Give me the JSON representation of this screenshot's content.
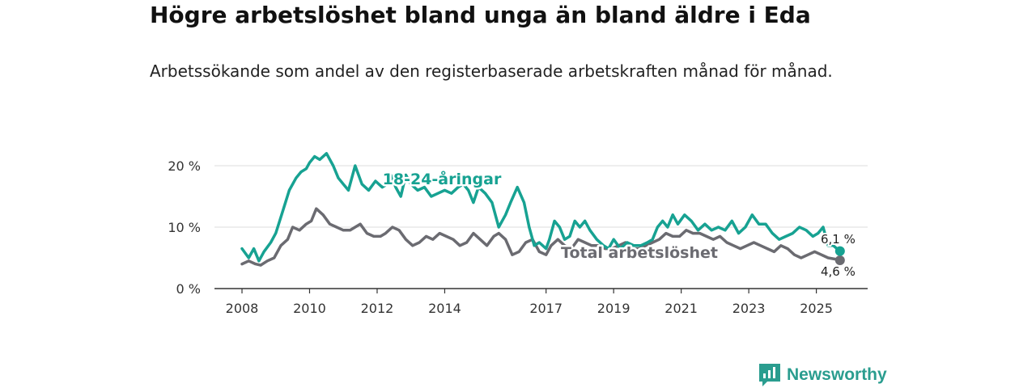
{
  "title": "Högre arbetslöshet bland unga än bland äldre i Eda",
  "subtitle": "Arbetssökande som andel av den registerbaserade arbetskraften månad för månad.",
  "brand": "Newsworthy",
  "colors": {
    "youth": "#17a292",
    "total": "#6b6b71",
    "grid": "#dddddd",
    "brand": "#2a9d8f"
  },
  "chart_data": {
    "type": "line",
    "title": "Högre arbetslöshet bland unga än bland äldre i Eda",
    "xlabel": "",
    "ylabel": "",
    "xlim": [
      2008,
      2025.8
    ],
    "ylim": [
      0,
      20
    ],
    "y_ticks": [
      0,
      10,
      20
    ],
    "y_tick_labels": [
      "0 %",
      "10 %",
      "20 %"
    ],
    "x_ticks": [
      2008,
      2010,
      2012,
      2014,
      2017,
      2019,
      2021,
      2023,
      2025
    ],
    "x_tick_labels": [
      "2008",
      "2010",
      "2012",
      "2014",
      "2017",
      "2019",
      "2021",
      "2023",
      "2025"
    ],
    "grid": true,
    "series": [
      {
        "name": "18-24-åringar",
        "label": "18-24-åringar",
        "color": "#17a292",
        "end_label": "6,1 %",
        "x": [
          2008.0,
          2008.2,
          2008.35,
          2008.5,
          2008.65,
          2008.85,
          2009.0,
          2009.2,
          2009.4,
          2009.6,
          2009.75,
          2009.9,
          2010.0,
          2010.15,
          2010.3,
          2010.5,
          2010.7,
          2010.85,
          2011.0,
          2011.15,
          2011.35,
          2011.55,
          2011.75,
          2011.95,
          2012.15,
          2012.3,
          2012.4,
          2012.55,
          2012.7,
          2012.85,
          2013.0,
          2013.2,
          2013.4,
          2013.6,
          2013.8,
          2014.0,
          2014.2,
          2014.4,
          2014.55,
          2014.7,
          2014.85,
          2015.0,
          2015.2,
          2015.4,
          2015.6,
          2015.8,
          2015.95,
          2016.15,
          2016.35,
          2016.5,
          2016.65,
          2016.8,
          2017.0,
          2017.1,
          2017.25,
          2017.4,
          2017.55,
          2017.7,
          2017.85,
          2018.0,
          2018.15,
          2018.3,
          2018.5,
          2018.7,
          2018.85,
          2019.0,
          2019.2,
          2019.4,
          2019.6,
          2019.8,
          2020.0,
          2020.15,
          2020.3,
          2020.45,
          2020.6,
          2020.75,
          2020.9,
          2021.1,
          2021.3,
          2021.5,
          2021.7,
          2021.9,
          2022.1,
          2022.3,
          2022.5,
          2022.7,
          2022.9,
          2023.1,
          2023.3,
          2023.5,
          2023.7,
          2023.9,
          2024.1,
          2024.3,
          2024.5,
          2024.7,
          2024.9,
          2025.05,
          2025.2,
          2025.35,
          2025.5,
          2025.7
        ],
        "values": [
          6.5,
          5.0,
          6.5,
          4.5,
          6.0,
          7.5,
          9.0,
          12.5,
          16.0,
          18.0,
          19.0,
          19.5,
          20.5,
          21.5,
          21.0,
          22.0,
          20.0,
          18.0,
          17.0,
          16.0,
          20.0,
          17.0,
          16.0,
          17.5,
          16.5,
          17.0,
          18.5,
          16.5,
          15.0,
          18.5,
          17.0,
          16.0,
          16.5,
          15.0,
          15.5,
          16.0,
          15.5,
          16.5,
          17.0,
          16.0,
          14.0,
          16.5,
          15.5,
          14.0,
          10.0,
          12.0,
          14.0,
          16.5,
          14.0,
          10.0,
          7.0,
          7.5,
          6.5,
          8.0,
          11.0,
          10.0,
          8.0,
          8.5,
          11.0,
          10.0,
          11.0,
          9.5,
          8.0,
          7.0,
          6.5,
          8.0,
          6.5,
          7.5,
          7.0,
          7.0,
          7.5,
          8.0,
          10.0,
          11.0,
          10.0,
          12.0,
          10.5,
          12.0,
          11.0,
          9.5,
          10.5,
          9.5,
          10.0,
          9.5,
          11.0,
          9.0,
          10.0,
          12.0,
          10.5,
          10.5,
          9.0,
          8.0,
          8.5,
          9.0,
          10.0,
          9.5,
          8.5,
          9.0,
          10.0,
          7.0,
          7.0,
          6.1
        ]
      },
      {
        "name": "Total arbetslöshet",
        "label": "Total arbetslöshet",
        "color": "#6b6b71",
        "end_label": "4,6 %",
        "x": [
          2008.0,
          2008.2,
          2008.4,
          2008.55,
          2008.75,
          2008.95,
          2009.15,
          2009.35,
          2009.5,
          2009.7,
          2009.9,
          2010.05,
          2010.2,
          2010.4,
          2010.6,
          2010.8,
          2011.0,
          2011.2,
          2011.35,
          2011.5,
          2011.7,
          2011.9,
          2012.1,
          2012.25,
          2012.45,
          2012.65,
          2012.85,
          2013.05,
          2013.25,
          2013.45,
          2013.65,
          2013.85,
          2014.05,
          2014.25,
          2014.45,
          2014.65,
          2014.85,
          2015.05,
          2015.25,
          2015.45,
          2015.6,
          2015.8,
          2016.0,
          2016.2,
          2016.4,
          2016.6,
          2016.8,
          2017.0,
          2017.15,
          2017.35,
          2017.55,
          2017.75,
          2017.95,
          2018.15,
          2018.35,
          2018.55,
          2018.75,
          2018.95,
          2019.15,
          2019.35,
          2019.55,
          2019.75,
          2019.95,
          2020.15,
          2020.35,
          2020.55,
          2020.75,
          2020.95,
          2021.15,
          2021.35,
          2021.55,
          2021.75,
          2021.95,
          2022.15,
          2022.35,
          2022.55,
          2022.75,
          2022.95,
          2023.15,
          2023.35,
          2023.55,
          2023.75,
          2023.95,
          2024.15,
          2024.35,
          2024.55,
          2024.75,
          2024.95,
          2025.15,
          2025.35,
          2025.55,
          2025.7
        ],
        "values": [
          4.0,
          4.5,
          4.0,
          3.8,
          4.5,
          5.0,
          7.0,
          8.0,
          10.0,
          9.5,
          10.5,
          11.0,
          13.0,
          12.0,
          10.5,
          10.0,
          9.5,
          9.5,
          10.0,
          10.5,
          9.0,
          8.5,
          8.5,
          9.0,
          10.0,
          9.5,
          8.0,
          7.0,
          7.5,
          8.5,
          8.0,
          9.0,
          8.5,
          8.0,
          7.0,
          7.5,
          9.0,
          8.0,
          7.0,
          8.5,
          9.0,
          8.0,
          5.5,
          6.0,
          7.5,
          8.0,
          6.0,
          5.5,
          7.0,
          8.0,
          7.0,
          6.5,
          8.0,
          7.5,
          7.0,
          7.0,
          6.5,
          6.5,
          7.0,
          7.5,
          6.5,
          6.5,
          7.0,
          7.5,
          8.0,
          9.0,
          8.5,
          8.5,
          9.5,
          9.0,
          9.0,
          8.5,
          8.0,
          8.5,
          7.5,
          7.0,
          6.5,
          7.0,
          7.5,
          7.0,
          6.5,
          6.0,
          7.0,
          6.5,
          5.5,
          5.0,
          5.5,
          6.0,
          5.5,
          5.0,
          4.8,
          4.6
        ]
      }
    ]
  }
}
